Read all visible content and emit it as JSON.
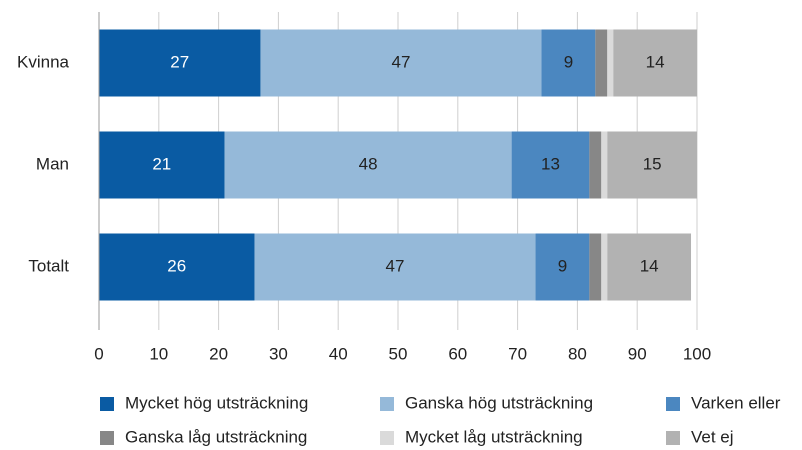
{
  "chart_data": {
    "type": "stacked-bar-horizontal",
    "categories": [
      "Kvinna",
      "Man",
      "Totalt"
    ],
    "series": [
      {
        "name": "Mycket hög utsträckning",
        "color": "#0a5ba3",
        "values": [
          27,
          21,
          26
        ]
      },
      {
        "name": "Ganska hög utsträckning",
        "color": "#95b9d9",
        "values": [
          47,
          48,
          47
        ]
      },
      {
        "name": "Varken eller",
        "color": "#4b87c0",
        "values": [
          9,
          13,
          9
        ]
      },
      {
        "name": "Ganska låg utsträckning",
        "color": "#878787",
        "values": [
          2,
          2,
          2
        ]
      },
      {
        "name": "Mycket låg utsträckning",
        "color": "#dadada",
        "values": [
          1,
          1,
          1
        ]
      },
      {
        "name": "Vet ej",
        "color": "#b2b2b2",
        "values": [
          14,
          15,
          14
        ]
      }
    ],
    "xlim": [
      0,
      100
    ],
    "xticks": [
      0,
      10,
      20,
      30,
      40,
      50,
      60,
      70,
      80,
      90,
      100
    ],
    "grid": true,
    "legend": "bottom"
  }
}
